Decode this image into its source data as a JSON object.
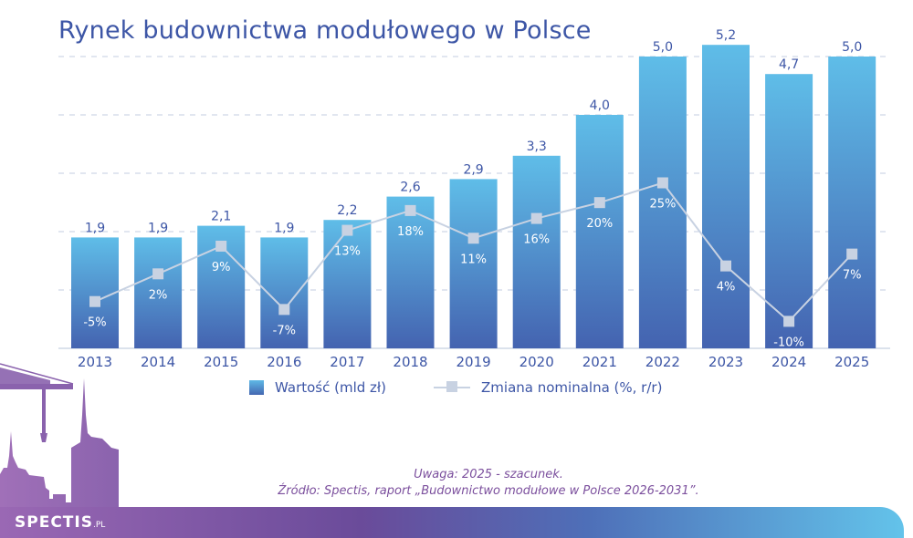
{
  "title": "Rynek budownictwa modułowego w Polsce",
  "legend": {
    "bars": "Wartość (mld zł)",
    "line": "Zmiana nominalna (%, r/r)"
  },
  "notes": {
    "note": "Uwaga: 2025 - szacunek.",
    "source": "Źródło: Spectis, raport „Budownictwo modułowe w Polsce 2026-2031”."
  },
  "logo": {
    "main": "SPECTIS",
    "suffix": ".PL"
  },
  "colors": {
    "bar_top": "#5fbde8",
    "bar_bottom": "#4463b0",
    "line": "#c8d2e2",
    "text": "#3d56a6",
    "note": "#7b4f9d"
  },
  "chart_data": {
    "type": "bar",
    "title": "Rynek budownictwa modułowego w Polsce",
    "categories": [
      "2013",
      "2014",
      "2015",
      "2016",
      "2017",
      "2018",
      "2019",
      "2020",
      "2021",
      "2022",
      "2023",
      "2024",
      "2025"
    ],
    "series": [
      {
        "name": "Wartość (mld zł)",
        "type": "bar",
        "values": [
          1.9,
          1.9,
          2.1,
          1.9,
          2.2,
          2.6,
          2.9,
          3.3,
          4.0,
          5.0,
          5.2,
          4.7,
          5.0
        ],
        "labels": [
          "1,9",
          "1,9",
          "2,1",
          "1,9",
          "2,2",
          "2,6",
          "2,9",
          "3,3",
          "4,0",
          "5,0",
          "5,2",
          "4,7",
          "5,0"
        ]
      },
      {
        "name": "Zmiana nominalna (%, r/r)",
        "type": "line",
        "values": [
          -5,
          2,
          9,
          -7,
          13,
          18,
          11,
          16,
          20,
          25,
          4,
          -10,
          7
        ],
        "labels": [
          "-5%",
          "2%",
          "9%",
          "-7%",
          "13%",
          "18%",
          "11%",
          "16%",
          "20%",
          "25%",
          "4%",
          "-10%",
          "7%"
        ]
      }
    ],
    "ylim": [
      0,
      5
    ],
    "grid": true,
    "legend_position": "bottom"
  }
}
